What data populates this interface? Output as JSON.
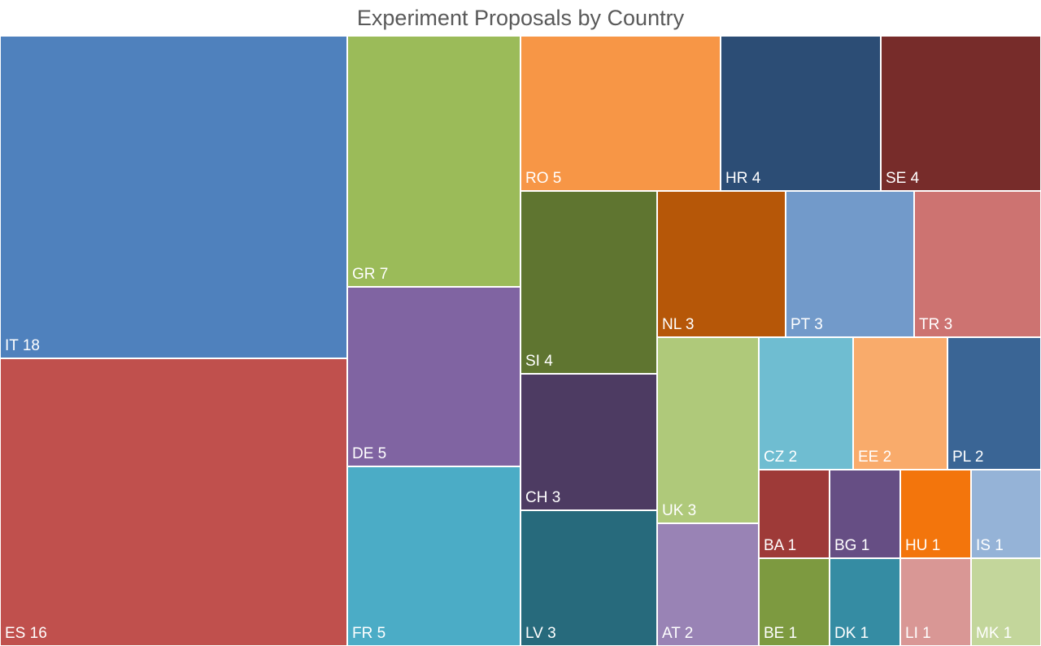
{
  "chart_data": {
    "type": "treemap",
    "title": "Experiment Proposals by Country",
    "items": [
      {
        "label": "IT",
        "value": 18,
        "color": "#4F81BD"
      },
      {
        "label": "ES",
        "value": 16,
        "color": "#C0504D"
      },
      {
        "label": "GR",
        "value": 7,
        "color": "#9BBB59"
      },
      {
        "label": "DE",
        "value": 5,
        "color": "#8064A2"
      },
      {
        "label": "FR",
        "value": 5,
        "color": "#4BACC6"
      },
      {
        "label": "RO",
        "value": 5,
        "color": "#F79646"
      },
      {
        "label": "HR",
        "value": 4,
        "color": "#2C4D75"
      },
      {
        "label": "SE",
        "value": 4,
        "color": "#772C2A"
      },
      {
        "label": "SI",
        "value": 4,
        "color": "#5F7530"
      },
      {
        "label": "CH",
        "value": 3,
        "color": "#4D3B62"
      },
      {
        "label": "LV",
        "value": 3,
        "color": "#276A7C"
      },
      {
        "label": "NL",
        "value": 3,
        "color": "#B65708"
      },
      {
        "label": "PT",
        "value": 3,
        "color": "#729ACA"
      },
      {
        "label": "TR",
        "value": 3,
        "color": "#CD7371"
      },
      {
        "label": "UK",
        "value": 3,
        "color": "#AFC97A"
      },
      {
        "label": "AT",
        "value": 2,
        "color": "#9983B5"
      },
      {
        "label": "CZ",
        "value": 2,
        "color": "#6FBDD1"
      },
      {
        "label": "EE",
        "value": 2,
        "color": "#F9AB6B"
      },
      {
        "label": "PL",
        "value": 2,
        "color": "#3A6595"
      },
      {
        "label": "BA",
        "value": 1,
        "color": "#9E3A38"
      },
      {
        "label": "BG",
        "value": 1,
        "color": "#664E84"
      },
      {
        "label": "HU",
        "value": 1,
        "color": "#F3750C"
      },
      {
        "label": "IS",
        "value": 1,
        "color": "#95B3D7"
      },
      {
        "label": "BE",
        "value": 1,
        "color": "#7D9A40"
      },
      {
        "label": "DK",
        "value": 1,
        "color": "#358CA3"
      },
      {
        "label": "LI",
        "value": 1,
        "color": "#D99795"
      },
      {
        "label": "MK",
        "value": 1,
        "color": "#C3D69B"
      }
    ]
  }
}
